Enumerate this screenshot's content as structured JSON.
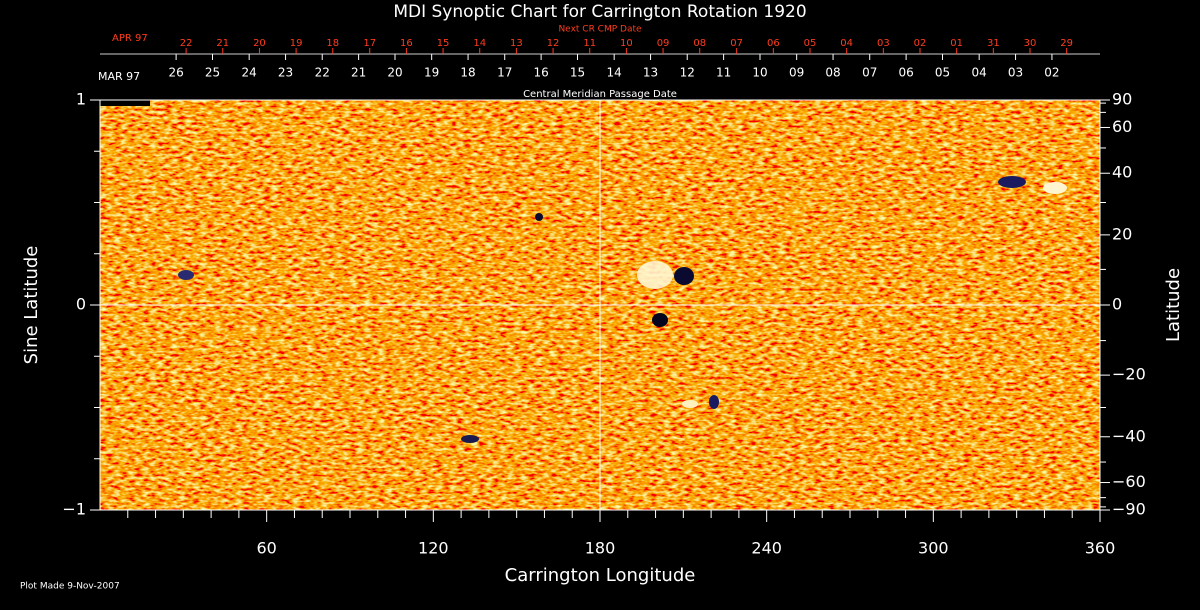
{
  "chart_data": {
    "type": "synoptic",
    "title": "MDI Synoptic Chart for Carrington Rotation 1920",
    "xlabel": "Carrington Longitude",
    "ylabel": "Sine Latitude",
    "y2label": "Latitude",
    "xlim": [
      0,
      360
    ],
    "xticks": [
      60,
      120,
      180,
      240,
      300,
      360
    ],
    "xminor_ticks": [
      10,
      20,
      30,
      40,
      50,
      70,
      80,
      90,
      100,
      110,
      130,
      140,
      150,
      160,
      170,
      190,
      200,
      210,
      220,
      230,
      250,
      260,
      270,
      280,
      290,
      310,
      320,
      330,
      340,
      350
    ],
    "ylim": [
      -1,
      1
    ],
    "yticks": [
      {
        "value": -1,
        "label": "−1"
      },
      0,
      1
    ],
    "yminor_ticks": [
      -0.75,
      -0.5,
      -0.25,
      0.25,
      0.5,
      0.75
    ],
    "y2lim": [
      -90,
      90
    ],
    "y2scale": "sine",
    "y2ticks": [
      90,
      60,
      40,
      20,
      0,
      {
        "value": -20,
        "label": "−20"
      },
      {
        "value": -40,
        "label": "−40"
      },
      {
        "value": -60,
        "label": "−60"
      },
      {
        "value": -90,
        "label": "−90"
      }
    ],
    "y2minor_ticks": [
      -80,
      -70,
      -50,
      -30,
      -10,
      10,
      30,
      50,
      70,
      80
    ],
    "next_cr_axis": {
      "label": "Next CR CMP Date",
      "month": "APR 97",
      "dates": [
        "22",
        "21",
        "20",
        "19",
        "18",
        "17",
        "16",
        "15",
        "14",
        "13",
        "12",
        "11",
        "10",
        "09",
        "08",
        "07",
        "06",
        "05",
        "04",
        "03",
        "02",
        "01",
        "31",
        "30",
        "29"
      ],
      "longitudes": [
        31.0,
        44.2,
        57.4,
        70.6,
        83.8,
        97.1,
        110.3,
        123.5,
        136.7,
        149.9,
        163.1,
        176.3,
        189.5,
        202.7,
        215.9,
        229.2,
        242.4,
        255.6,
        268.8,
        282.0,
        295.2,
        308.4,
        321.6,
        334.8,
        348.0
      ]
    },
    "cmp_axis": {
      "label": "Central Meridian Passage Date",
      "month": "MAR 97",
      "dates": [
        "26",
        "25",
        "24",
        "23",
        "22",
        "21",
        "20",
        "19",
        "18",
        "17",
        "16",
        "15",
        "14",
        "13",
        "12",
        "11",
        "10",
        "09",
        "08",
        "07",
        "06",
        "05",
        "04",
        "03",
        "02"
      ],
      "longitudes": [
        27.4,
        40.5,
        53.7,
        66.8,
        80.0,
        93.1,
        106.2,
        119.4,
        132.5,
        145.7,
        158.8,
        171.9,
        185.1,
        198.2,
        211.4,
        224.5,
        237.6,
        250.8,
        263.9,
        277.1,
        290.2,
        303.3,
        316.5,
        329.6,
        342.7
      ]
    },
    "footer": "Plot Made  9-Nov-2007"
  }
}
